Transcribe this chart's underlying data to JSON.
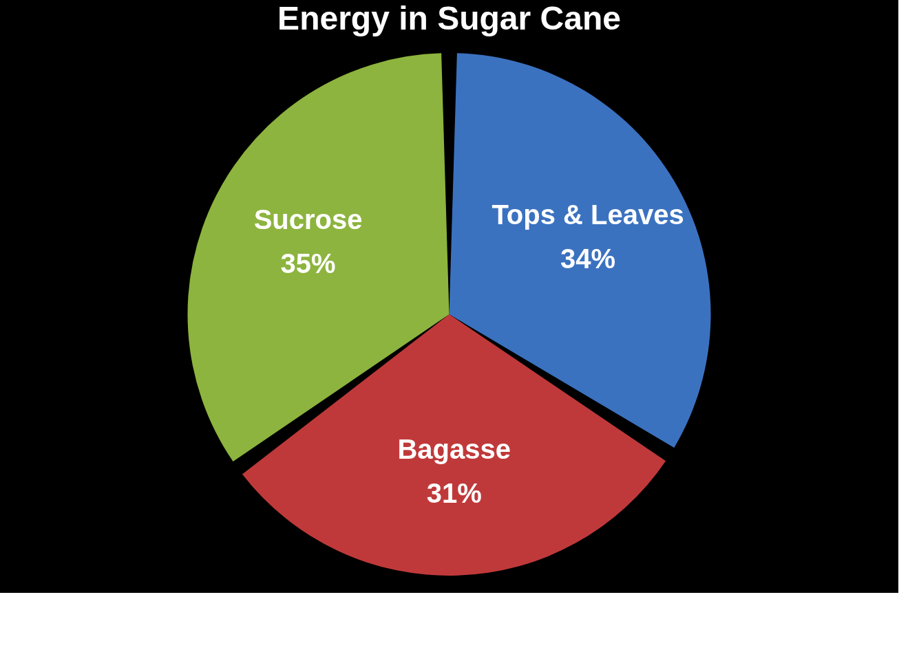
{
  "chart_data": {
    "type": "pie",
    "title": "Energy in Sugar Cane",
    "categories": [
      "Tops & Leaves",
      "Bagasse",
      "Sucrose"
    ],
    "values": [
      34,
      31,
      35
    ],
    "colors": [
      "#3b72c0",
      "#c0393a",
      "#8db43e"
    ],
    "value_labels": [
      "34%",
      "31%",
      "35%"
    ],
    "legend": false
  }
}
